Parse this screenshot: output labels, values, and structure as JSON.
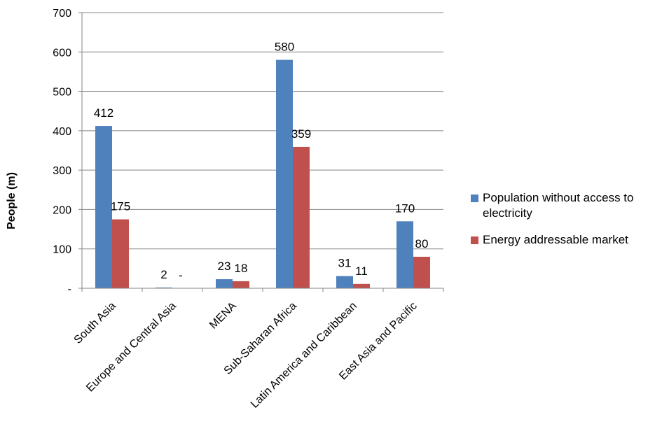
{
  "chart_data": {
    "type": "bar",
    "categories": [
      "South Asia",
      "Europe and Central Asia",
      "MENA",
      "Sub-Saharan Africa",
      "Latin America and Caribbean",
      "East Asia and Pacific"
    ],
    "series": [
      {
        "name": "Population without access to electricity",
        "color": "#4F81BD",
        "values": [
          412,
          2,
          23,
          580,
          31,
          170
        ],
        "labels": [
          "412",
          "2",
          "23",
          "580",
          "31",
          "170"
        ]
      },
      {
        "name": "Energy addressable market",
        "color": "#C0504D",
        "values": [
          175,
          0,
          18,
          359,
          11,
          80
        ],
        "labels": [
          "175",
          "-",
          "18",
          "359",
          "11",
          "80"
        ]
      }
    ],
    "ylabel": "People (m)",
    "xlabel": "",
    "title": "",
    "ylim": [
      0,
      700
    ],
    "yticks": [
      0,
      100,
      200,
      300,
      400,
      500,
      600,
      700
    ],
    "ytick_labels": [
      "-",
      "100",
      "200",
      "300",
      "400",
      "500",
      "600",
      "700"
    ],
    "grid": true,
    "legend_position": "right"
  }
}
